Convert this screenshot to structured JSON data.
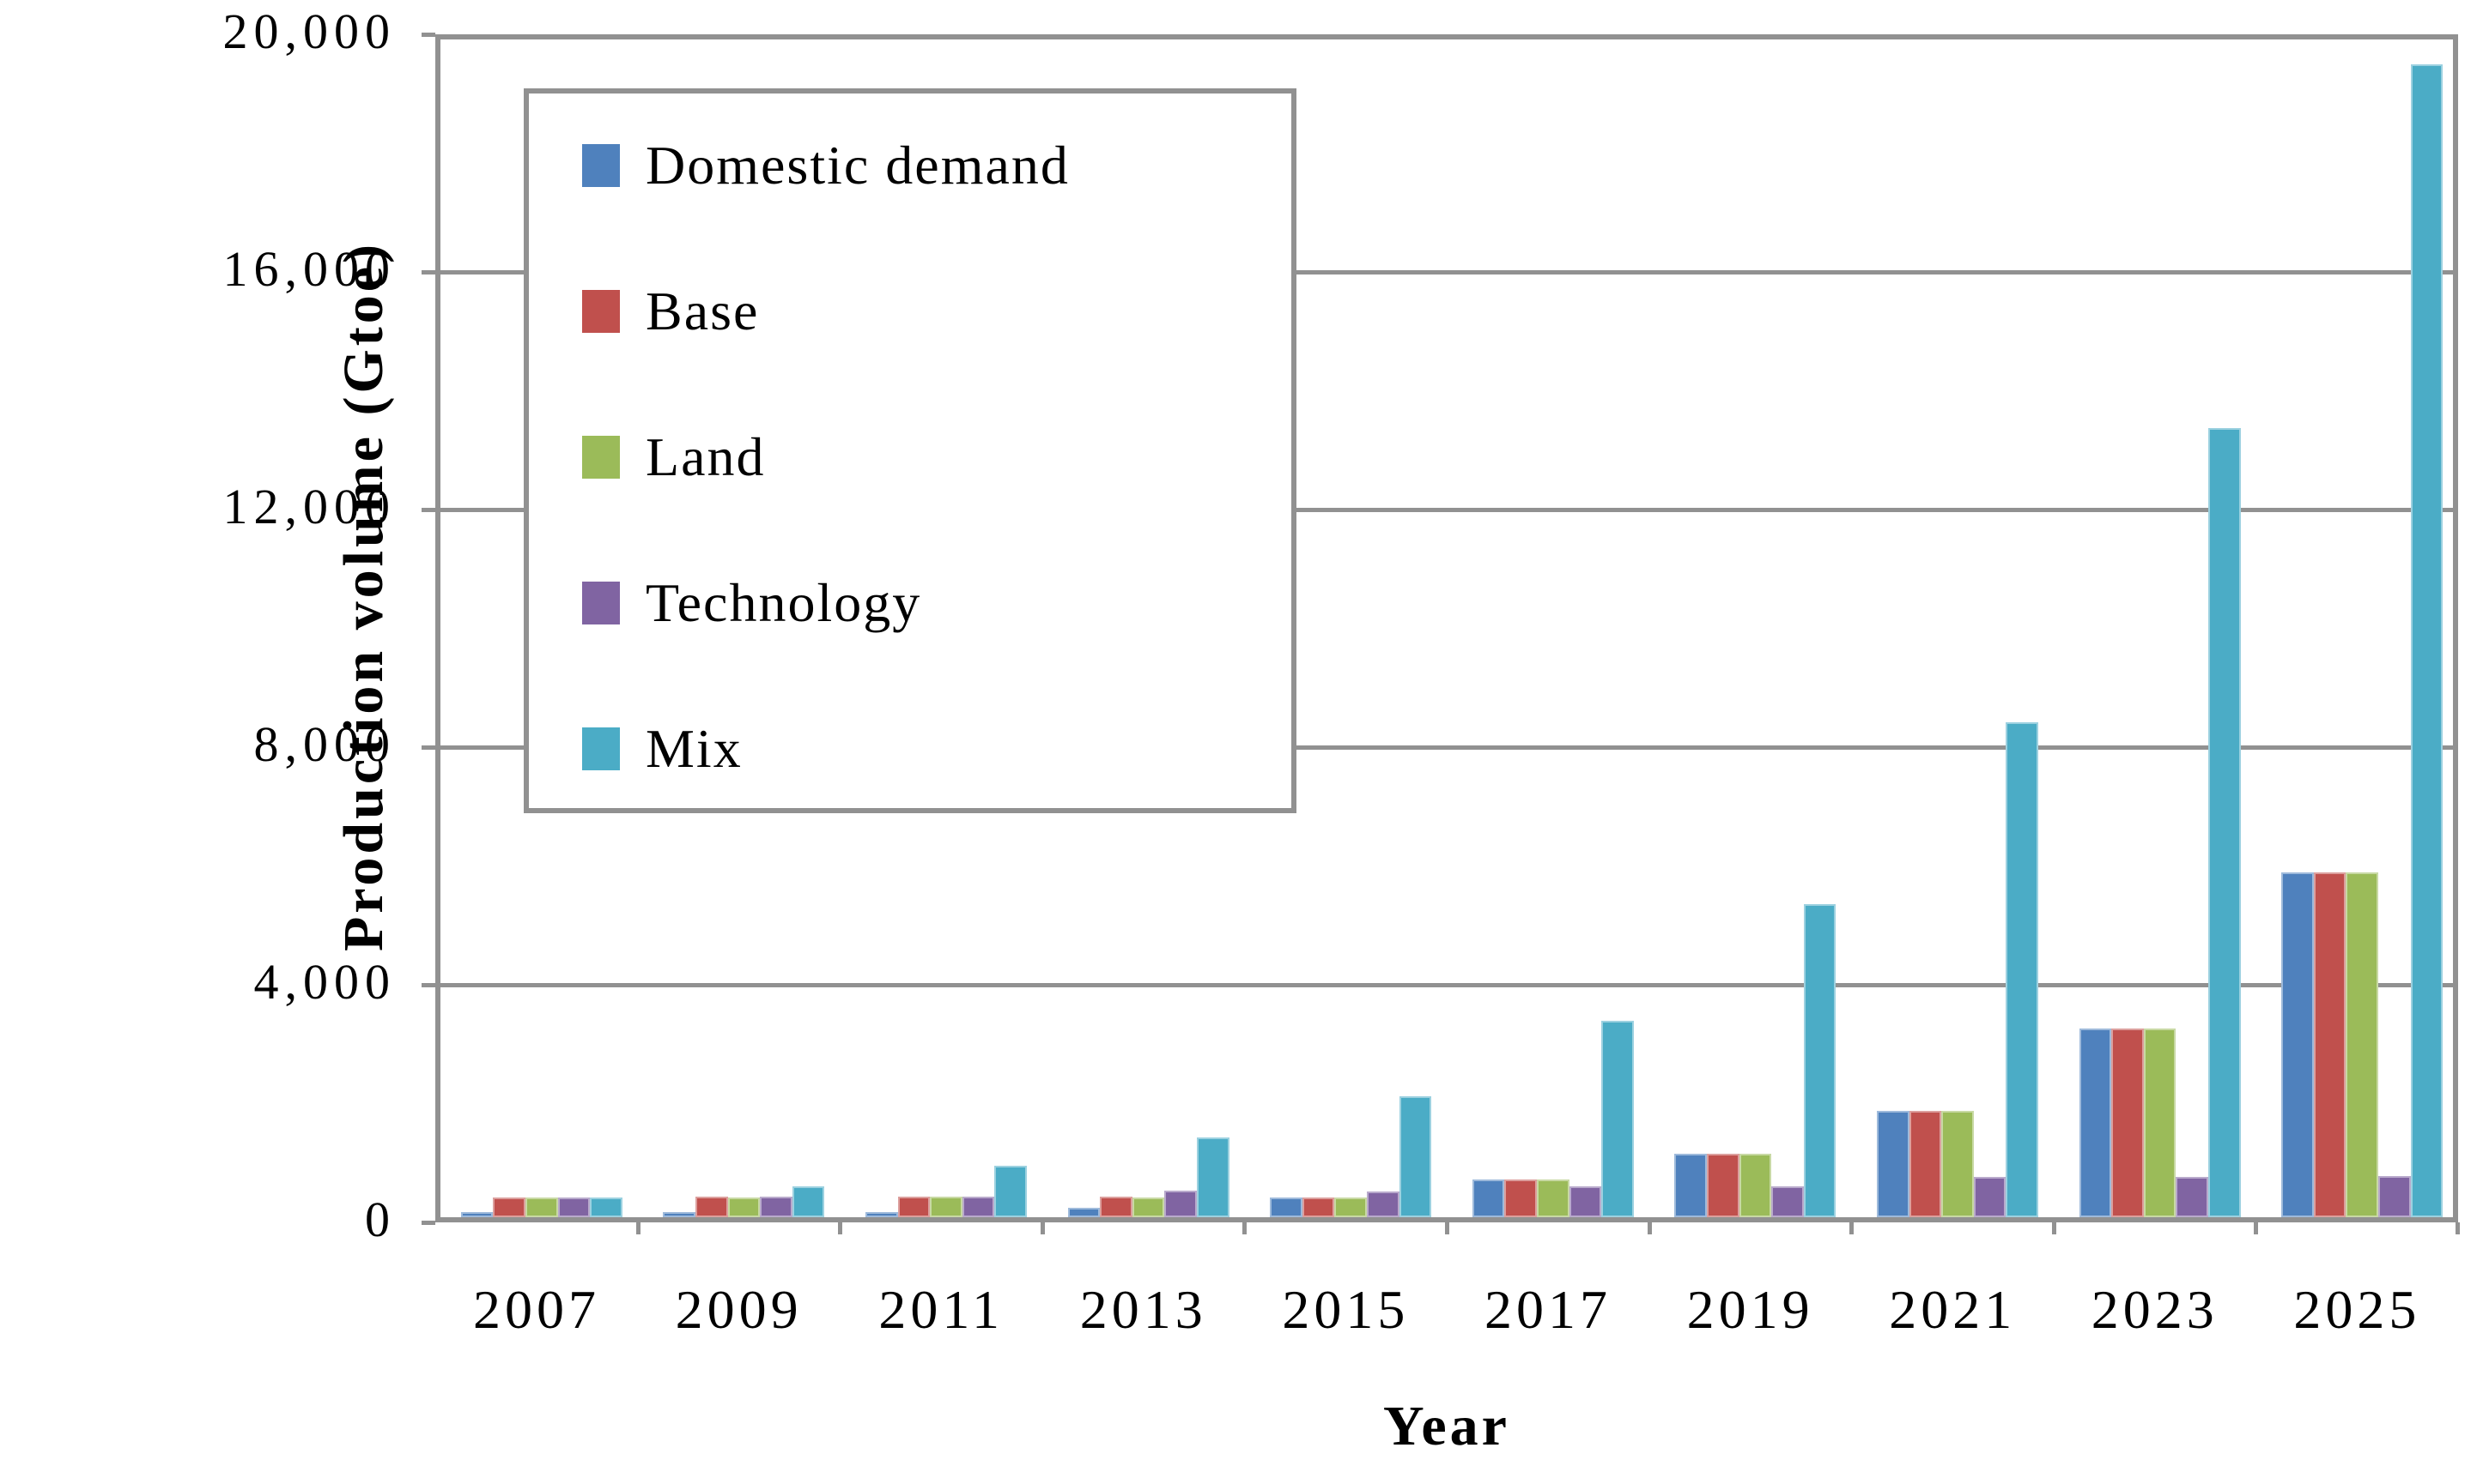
{
  "chart_data": {
    "type": "bar",
    "title": "",
    "xlabel": "Year",
    "ylabel": "Production volume (Gtoe)",
    "ylim": [
      0,
      20000
    ],
    "ytick_step": 4000,
    "ytick_labels": [
      "0",
      "4,000",
      "8,000",
      "12,000",
      "16,000",
      "20,000"
    ],
    "grid": "horizontal",
    "legend_position": "upper-left",
    "categories": [
      "2007",
      "2009",
      "2011",
      "2013",
      "2015",
      "2017",
      "2019",
      "2021",
      "2023",
      "2025"
    ],
    "series": [
      {
        "name": "Domestic demand",
        "color": "#4F81BD",
        "values": [
          90,
          90,
          90,
          160,
          330,
          640,
          1080,
          1800,
          3200,
          5860
        ]
      },
      {
        "name": "Base",
        "color": "#C0504D",
        "values": [
          340,
          345,
          345,
          345,
          330,
          640,
          1080,
          1800,
          3200,
          5860
        ]
      },
      {
        "name": "Land",
        "color": "#9BBB59",
        "values": [
          340,
          340,
          345,
          340,
          330,
          640,
          1080,
          1800,
          3200,
          5860
        ]
      },
      {
        "name": "Technology",
        "color": "#8064A2",
        "values": [
          340,
          350,
          350,
          450,
          430,
          520,
          530,
          680,
          680,
          700
        ]
      },
      {
        "name": "Mix",
        "color": "#4BACC6",
        "values": [
          340,
          520,
          880,
          1360,
          2050,
          3340,
          5310,
          8400,
          13400,
          19580
        ]
      }
    ],
    "axis_color": "#919191"
  }
}
